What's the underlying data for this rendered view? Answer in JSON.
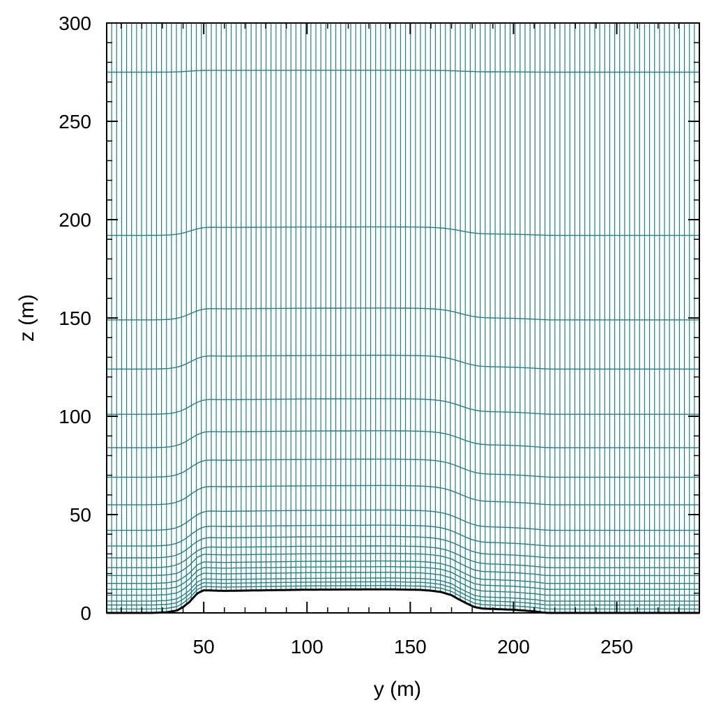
{
  "chart_data": {
    "type": "line",
    "title": "",
    "xlabel": "y (m)",
    "ylabel": "z (m)",
    "xlim": [
      3,
      290
    ],
    "ylim": [
      0,
      300
    ],
    "x_ticks": [
      50,
      100,
      150,
      200,
      250
    ],
    "x_tick_labels": [
      "50",
      "100",
      "150",
      "200",
      "250"
    ],
    "x_minor_step": 10,
    "y_ticks": [
      0,
      50,
      100,
      150,
      200,
      250,
      300
    ],
    "y_tick_labels": [
      "0",
      "50",
      "100",
      "150",
      "200",
      "250",
      "300"
    ],
    "y_minor_step": 10,
    "grid": false,
    "legend": "none",
    "colors": {
      "mesh": "#1f7f86",
      "terrain": "#000000",
      "axes": "#000000"
    },
    "mesh_vertical_lines": {
      "count": 120,
      "x_start": 3,
      "x_end": 290
    },
    "mesh_levels_at_flat_region": [
      0,
      2,
      4,
      6,
      9,
      12,
      15,
      19,
      23,
      28,
      34,
      42,
      55,
      69,
      84,
      101,
      124,
      149,
      192,
      275
    ],
    "mesh_top": 300,
    "terrain": {
      "x": [
        3,
        25,
        32,
        37,
        40,
        43,
        45,
        47,
        50,
        60,
        80,
        100,
        140,
        155,
        160,
        165,
        170,
        173,
        177,
        181,
        185,
        190,
        200,
        205,
        210,
        213,
        215,
        217,
        220,
        290
      ],
      "z": [
        0,
        0,
        0.3,
        1.2,
        3,
        5.5,
        7.8,
        10,
        11.5,
        11.2,
        11.5,
        11.8,
        12,
        11.7,
        11.3,
        10.6,
        9,
        7.2,
        5,
        3,
        2.2,
        2,
        1.6,
        1.2,
        0.8,
        0.4,
        0.1,
        0,
        0,
        0
      ]
    }
  }
}
